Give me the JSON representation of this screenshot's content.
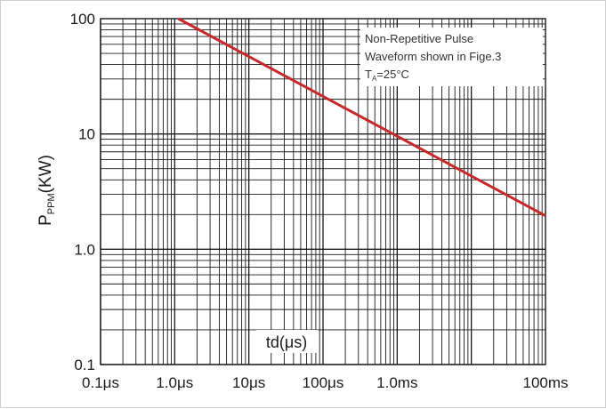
{
  "chart_data": {
    "type": "line",
    "xscale": "log",
    "yscale": "log",
    "xlim_us": [
      0.1,
      100000
    ],
    "ylim": [
      0.1,
      100
    ],
    "xticks": [
      {
        "value_us": 0.1,
        "label": "0.1μs"
      },
      {
        "value_us": 1,
        "label": "1.0μs"
      },
      {
        "value_us": 10,
        "label": "10μs"
      },
      {
        "value_us": 100,
        "label": "100μs"
      },
      {
        "value_us": 1000,
        "label": "1.0ms"
      },
      {
        "value_us": 100000,
        "label": "100ms"
      }
    ],
    "yticks": [
      {
        "value": 0.1,
        "label": "0.1"
      },
      {
        "value": 1,
        "label": "1.0"
      },
      {
        "value": 10,
        "label": "10"
      },
      {
        "value": 100,
        "label": "100"
      }
    ],
    "grid": true,
    "ylabel": {
      "main": "P",
      "sub": "PPM",
      "unit": "(KW)"
    },
    "xlabel": "td(μs)",
    "annotation": {
      "line1": "Non-Repetitive Pulse",
      "line2": "Waveform shown in Fige.3",
      "line3_main": "T",
      "line3_sub": "A",
      "line3_rest": "=25°C"
    },
    "series": [
      {
        "points": [
          {
            "x_us": 1.12,
            "y": 100
          },
          {
            "x_us": 100000,
            "y": 1.95
          }
        ]
      }
    ],
    "colors": {
      "line": "#c8282a",
      "grid": "#1a1a1a"
    }
  }
}
